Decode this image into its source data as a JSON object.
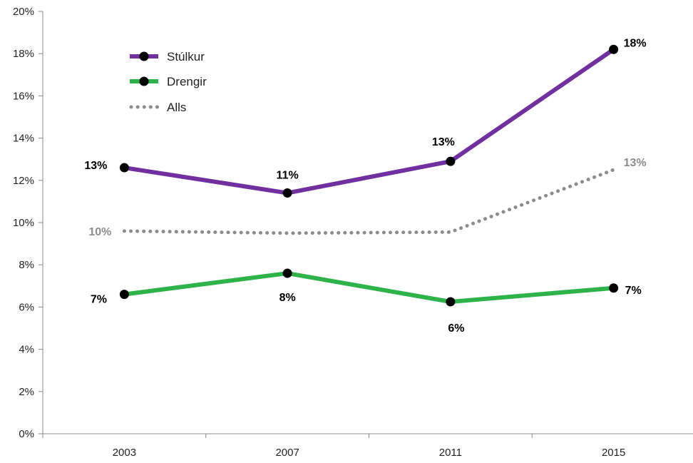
{
  "chart_data": {
    "type": "line",
    "title": "",
    "xlabel": "",
    "ylabel": "",
    "categories": [
      "2003",
      "2007",
      "2011",
      "2015"
    ],
    "ylim": [
      0,
      20
    ],
    "y_ticks": [
      "0%",
      "2%",
      "4%",
      "6%",
      "8%",
      "10%",
      "12%",
      "14%",
      "16%",
      "18%",
      "20%"
    ],
    "grid": false,
    "legend_position": "top-left",
    "series": [
      {
        "name": "Stúlkur",
        "color": "#7030a0",
        "style": "solid",
        "markers": true,
        "values": [
          12.6,
          11.4,
          12.9,
          18.2
        ],
        "labels": [
          "13%",
          "11%",
          "13%",
          "18%"
        ],
        "label_color": "#000000"
      },
      {
        "name": "Drengir",
        "color": "#2eb34a",
        "style": "solid",
        "markers": true,
        "values": [
          6.6,
          7.6,
          6.25,
          6.9
        ],
        "labels": [
          "7%",
          "8%",
          "6%",
          "7%"
        ],
        "label_color": "#000000"
      },
      {
        "name": "Alls",
        "color": "#8c8c8c",
        "style": "dotted",
        "markers": false,
        "values": [
          9.6,
          9.5,
          9.55,
          12.5
        ],
        "labels": [
          "10%",
          "",
          "",
          "13%"
        ],
        "label_color": "#8c8c8c"
      }
    ]
  }
}
